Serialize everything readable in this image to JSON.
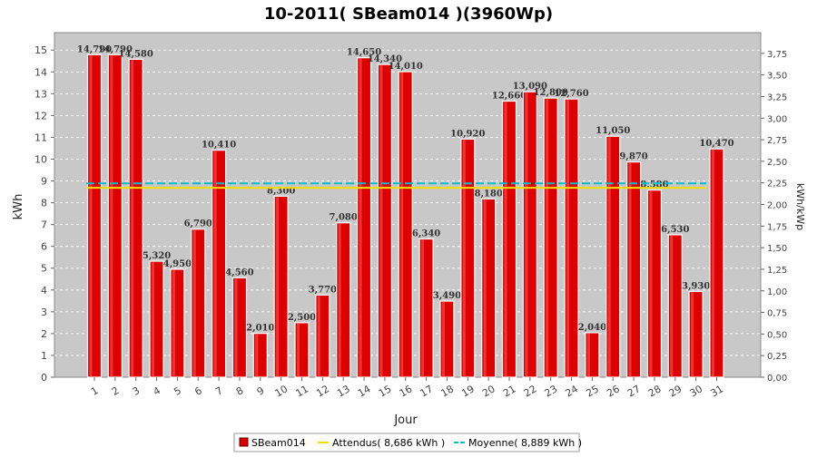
{
  "chart_data": {
    "type": "bar",
    "title": "10-2011( SBeam014 )(3960Wp)",
    "xlabel": "Jour",
    "ylabel": "kWh",
    "y2label": "kWh/kWp",
    "categories": [
      "1",
      "2",
      "3",
      "4",
      "5",
      "6",
      "7",
      "8",
      "9",
      "10",
      "11",
      "12",
      "13",
      "14",
      "15",
      "16",
      "17",
      "18",
      "19",
      "20",
      "21",
      "22",
      "23",
      "24",
      "25",
      "26",
      "27",
      "28",
      "29",
      "30",
      "31"
    ],
    "series": [
      {
        "name": "SBeam014",
        "color": "#dd0000",
        "values": [
          14.79,
          14.79,
          14.58,
          5.32,
          4.95,
          6.79,
          10.41,
          4.56,
          2.01,
          8.3,
          2.5,
          3.77,
          7.08,
          14.65,
          14.34,
          14.01,
          6.34,
          3.49,
          10.92,
          8.18,
          12.66,
          13.09,
          12.8,
          12.76,
          2.04,
          11.05,
          9.87,
          8.58,
          6.53,
          3.93,
          10.47
        ],
        "labels": [
          "14,790",
          "14,790",
          "14,580",
          "5,320",
          "4,950",
          "6,790",
          "10,410",
          "4,560",
          "2,010",
          "8,300",
          "2,500",
          "3,770",
          "7,080",
          "14,650",
          "14,340",
          "14,010",
          "6,340",
          "3,490",
          "10,920",
          "8,180",
          "12,660",
          "13,090",
          "12,800",
          "12,760",
          "2,040",
          "11,050",
          "9,870",
          "8,580",
          "6,530",
          "3,930",
          "10,470"
        ]
      }
    ],
    "reference_lines": [
      {
        "name": "Attendus( 8,686 kWh )",
        "value": 8.686,
        "color": "#f0e000",
        "style": "solid"
      },
      {
        "name": "Moyenne( 8,889 kWh )",
        "value": 8.889,
        "color": "#00c0d0",
        "style": "dashed"
      }
    ],
    "ylim": [
      0,
      15.8
    ],
    "y_ticks": [
      0,
      1,
      2,
      3,
      4,
      5,
      6,
      7,
      8,
      9,
      10,
      11,
      12,
      13,
      14,
      15
    ],
    "y2_ticks": [
      "0,00",
      "0,25",
      "0,50",
      "0,75",
      "1,00",
      "1,25",
      "1,50",
      "1,75",
      "2,00",
      "2,25",
      "2,50",
      "2,75",
      "3,00",
      "3,25",
      "3,50",
      "3,75"
    ],
    "y2_tick_values": [
      0,
      0.25,
      0.5,
      0.75,
      1.0,
      1.25,
      1.5,
      1.75,
      2.0,
      2.25,
      2.5,
      2.75,
      3.0,
      3.25,
      3.5,
      3.75
    ],
    "kwp": 3.96,
    "grid": true,
    "legend_position": "bottom",
    "plot_background": "#c8c8c8"
  }
}
